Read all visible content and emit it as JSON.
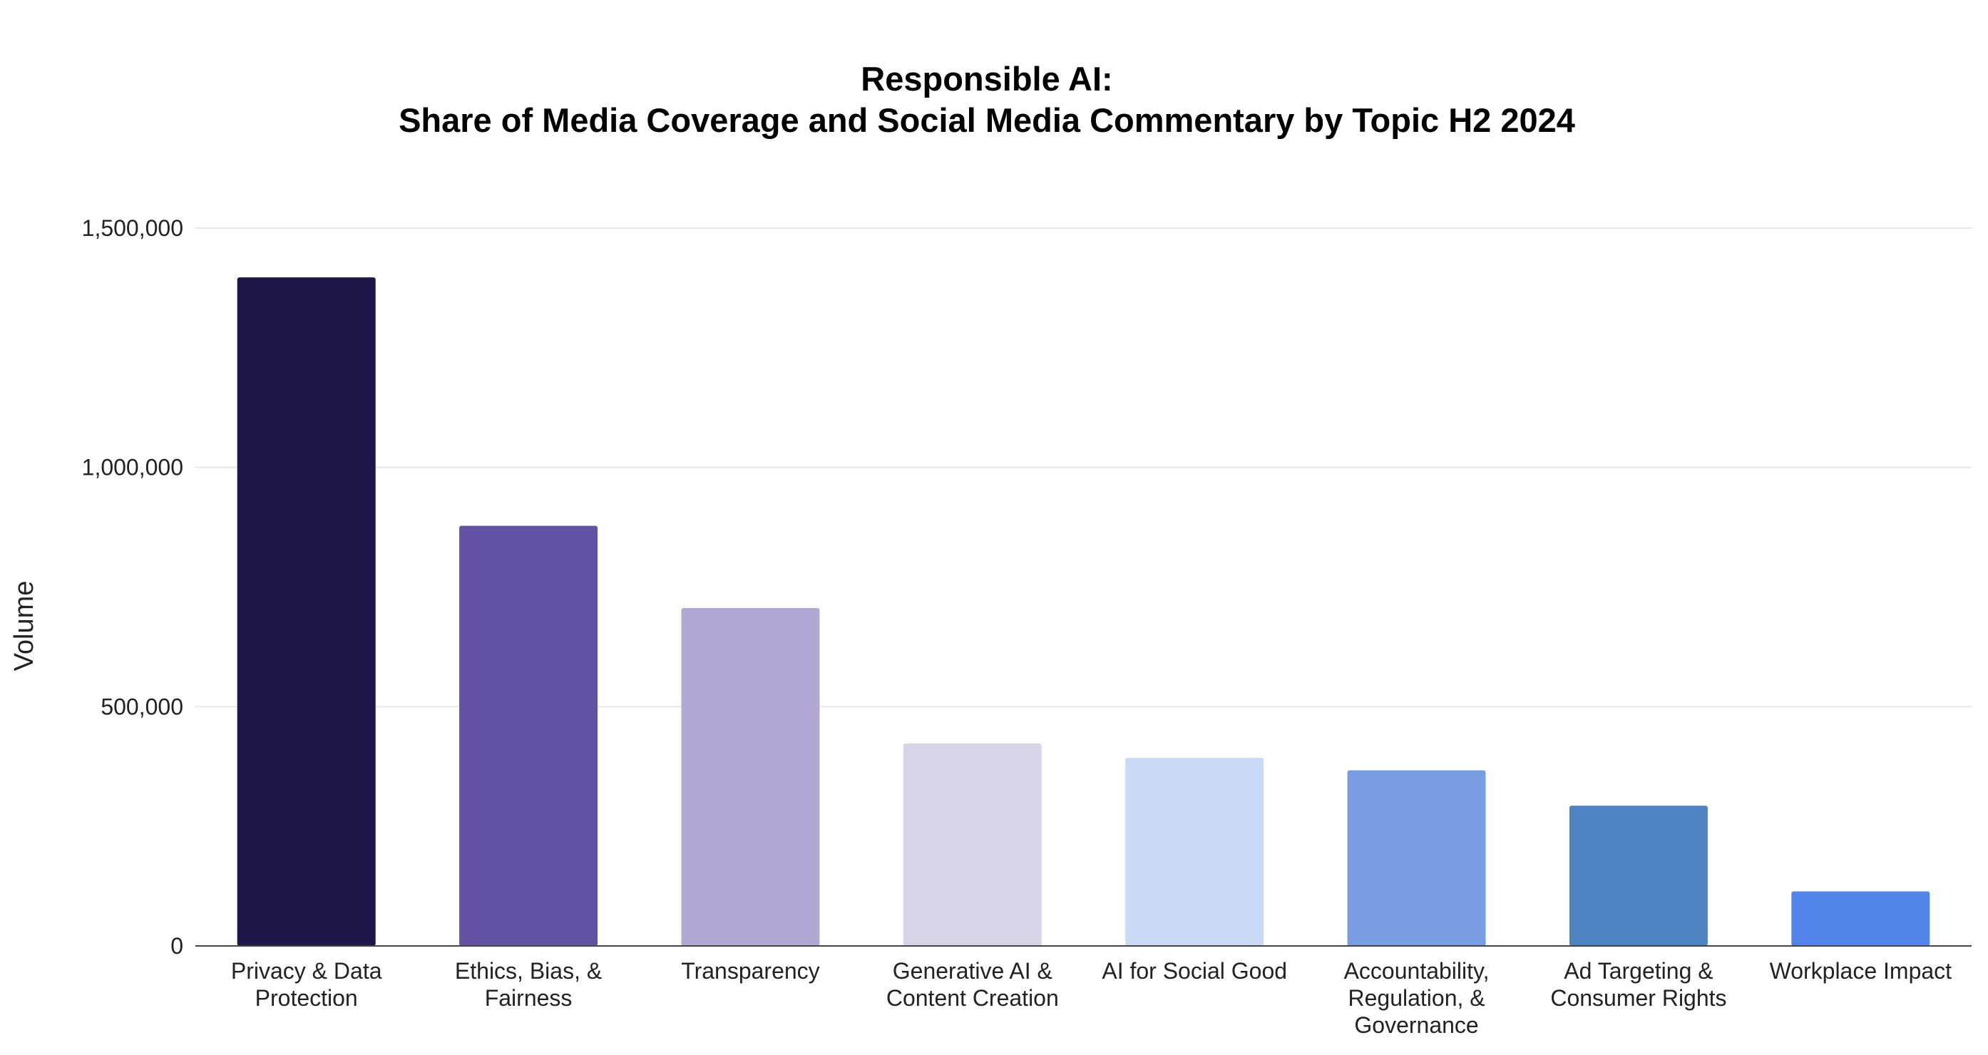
{
  "chart_data": {
    "type": "bar",
    "title_lines": [
      "Responsible AI:",
      "Share of Media Coverage and Social Media Commentary by Topic H2 2024"
    ],
    "xlabel": "",
    "ylabel": "Volume",
    "ylim": [
      0,
      1500000
    ],
    "yticks": [
      {
        "value": 0,
        "label": "0"
      },
      {
        "value": 500000,
        "label": "500,000"
      },
      {
        "value": 1000000,
        "label": "1,000,000"
      },
      {
        "value": 1500000,
        "label": "1,500,000"
      }
    ],
    "grid": true,
    "categories": [
      {
        "lines": [
          "Privacy & Data",
          "Protection"
        ],
        "value": 1397000,
        "color": "#1f1649"
      },
      {
        "lines": [
          "Ethics, Bias, &",
          "Fairness"
        ],
        "value": 878000,
        "color": "#6351a2"
      },
      {
        "lines": [
          "Transparency"
        ],
        "value": 706000,
        "color": "#b2a8d3"
      },
      {
        "lines": [
          "Generative AI &",
          "Content Creation"
        ],
        "value": 423000,
        "color": "#d8d4e8"
      },
      {
        "lines": [
          "AI for Social Good"
        ],
        "value": 393000,
        "color": "#cbdaf4"
      },
      {
        "lines": [
          "Accountability,",
          "Regulation, &",
          "Governance"
        ],
        "value": 367000,
        "color": "#799de3"
      },
      {
        "lines": [
          "Ad Targeting &",
          "Consumer Rights"
        ],
        "value": 293000,
        "color": "#5083c4"
      },
      {
        "lines": [
          "Workplace Impact"
        ],
        "value": 114000,
        "color": "#5384ea"
      }
    ]
  }
}
